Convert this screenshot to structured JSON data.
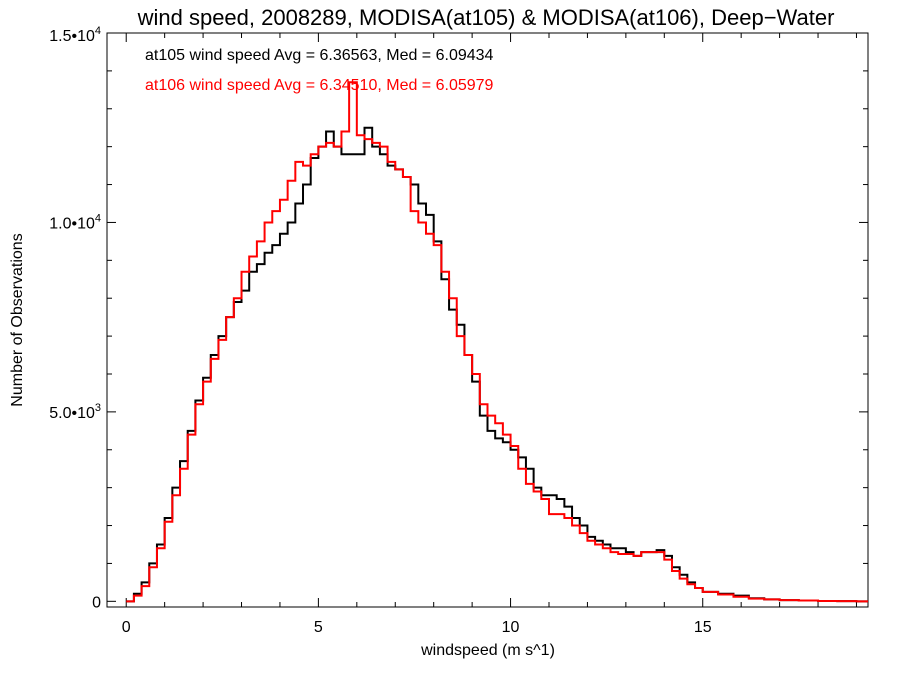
{
  "chart_data": {
    "type": "line",
    "step": true,
    "title": "wind speed, 2008289, MODISA(at105) & MODISA(at106), Deep−Water",
    "xlabel": "windspeed (m s^1)",
    "ylabel": "Number of Observations",
    "xlim": [
      -0.5,
      19.3
    ],
    "ylim": [
      -150,
      15000
    ],
    "xticks": [
      0,
      5,
      10,
      15
    ],
    "xtick_labels": [
      "0",
      "5",
      "10",
      "15"
    ],
    "yticks": [
      {
        "value": 0,
        "mant": "0",
        "exp": ""
      },
      {
        "value": 5000,
        "mant": "5.0•10",
        "exp": "3"
      },
      {
        "value": 10000,
        "mant": "1.0•10",
        "exp": "4"
      },
      {
        "value": 15000,
        "mant": "1.5•10",
        "exp": "4"
      }
    ],
    "legend": [
      {
        "text": "at105 wind speed Avg = 6.36563, Med = 6.09434",
        "color": "#000000"
      },
      {
        "text": "at106 wind speed Avg = 6.34510, Med = 6.05979",
        "color": "#ff0000"
      }
    ],
    "series": [
      {
        "color": "#000000",
        "x": [
          0,
          0.2,
          0.4,
          0.6,
          0.8,
          1.0,
          1.2,
          1.4,
          1.6,
          1.8,
          2.0,
          2.2,
          2.4,
          2.6,
          2.8,
          3.0,
          3.2,
          3.4,
          3.6,
          3.8,
          4.0,
          4.2,
          4.4,
          4.6,
          4.8,
          5.0,
          5.2,
          5.4,
          5.6,
          5.8,
          6.0,
          6.2,
          6.4,
          6.6,
          6.8,
          7.0,
          7.2,
          7.4,
          7.6,
          7.8,
          8.0,
          8.2,
          8.4,
          8.6,
          8.8,
          9.0,
          9.2,
          9.4,
          9.6,
          9.8,
          10.0,
          10.2,
          10.4,
          10.6,
          10.8,
          11.0,
          11.2,
          11.4,
          11.6,
          11.8,
          12.0,
          12.2,
          12.4,
          12.6,
          12.8,
          13.0,
          13.2,
          13.4,
          13.6,
          13.8,
          14.0,
          14.2,
          14.4,
          14.6,
          14.8,
          15.0,
          15.4,
          15.8,
          16.2,
          16.6,
          17.0,
          17.5,
          18.0,
          18.5,
          19.0
        ],
        "y": [
          0,
          200,
          500,
          1000,
          1500,
          2200,
          3000,
          3700,
          4500,
          5300,
          5900,
          6500,
          7000,
          7500,
          7900,
          8200,
          8700,
          8900,
          9200,
          9400,
          9700,
          10000,
          10500,
          11000,
          11700,
          12000,
          12400,
          12000,
          11800,
          11800,
          11800,
          12500,
          12000,
          11800,
          11500,
          11400,
          11200,
          11000,
          10500,
          10200,
          9500,
          8500,
          7700,
          7300,
          6500,
          5800,
          4900,
          4500,
          4300,
          4200,
          4000,
          3800,
          3500,
          3000,
          2800,
          2800,
          2700,
          2500,
          2200,
          2000,
          1700,
          1600,
          1500,
          1400,
          1400,
          1300,
          1200,
          1300,
          1300,
          1350,
          1200,
          900,
          700,
          500,
          350,
          250,
          200,
          150,
          80,
          50,
          30,
          20,
          10,
          5,
          0
        ]
      },
      {
        "color": "#ff0000",
        "x": [
          0,
          0.2,
          0.4,
          0.6,
          0.8,
          1.0,
          1.2,
          1.4,
          1.6,
          1.8,
          2.0,
          2.2,
          2.4,
          2.6,
          2.8,
          3.0,
          3.2,
          3.4,
          3.6,
          3.8,
          4.0,
          4.2,
          4.4,
          4.6,
          4.8,
          5.0,
          5.2,
          5.4,
          5.6,
          5.8,
          6.0,
          6.2,
          6.4,
          6.6,
          6.8,
          7.0,
          7.2,
          7.4,
          7.6,
          7.8,
          8.0,
          8.2,
          8.4,
          8.6,
          8.8,
          9.0,
          9.2,
          9.4,
          9.6,
          9.8,
          10.0,
          10.2,
          10.4,
          10.6,
          10.8,
          11.0,
          11.2,
          11.4,
          11.6,
          11.8,
          12.0,
          12.2,
          12.4,
          12.6,
          12.8,
          13.0,
          13.2,
          13.4,
          13.6,
          13.8,
          14.0,
          14.2,
          14.4,
          14.6,
          14.8,
          15.0,
          15.4,
          15.8,
          16.2,
          16.6,
          17.0,
          17.5,
          18.0,
          18.5,
          19.0
        ],
        "y": [
          0,
          150,
          400,
          900,
          1400,
          2100,
          2800,
          3500,
          4400,
          5200,
          5800,
          6400,
          6900,
          7500,
          8000,
          8700,
          9100,
          9500,
          10000,
          10300,
          10600,
          11100,
          11600,
          11500,
          11800,
          12000,
          12100,
          12000,
          12400,
          13700,
          12300,
          12200,
          12100,
          12000,
          11600,
          11400,
          11200,
          10300,
          10000,
          9700,
          9400,
          8700,
          8000,
          7000,
          6500,
          6000,
          5200,
          4900,
          4700,
          4400,
          4100,
          3500,
          3100,
          2900,
          2700,
          2300,
          2300,
          2200,
          2000,
          1800,
          1600,
          1500,
          1400,
          1300,
          1250,
          1250,
          1200,
          1300,
          1300,
          1300,
          1100,
          800,
          600,
          450,
          350,
          250,
          180,
          120,
          70,
          50,
          30,
          20,
          10,
          5,
          0
        ]
      }
    ]
  }
}
